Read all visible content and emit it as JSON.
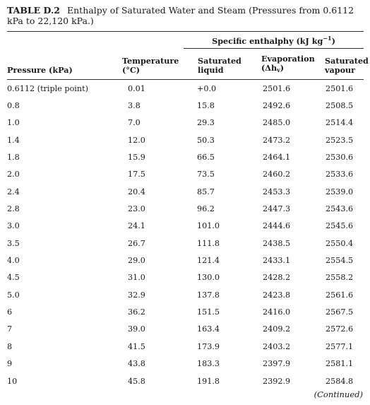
{
  "caption": {
    "label": "TABLE D.2",
    "text": "Enthalpy of Saturated Water and Steam (Pressures from 0.6112 kPa to 22,120 kPa.)"
  },
  "header": {
    "group": "Specific enthalphy (kJ kg",
    "group_sup": "−1",
    "group_end": ")",
    "pressure": "Pressure (kPa)",
    "temperature_1": "Temperature",
    "temperature_2": "(°C)",
    "liquid_1": "Saturated",
    "liquid_2": "liquid",
    "evaporation_1": "Evaporation",
    "evaporation_2a": "(Δh",
    "evaporation_2sub": "v",
    "evaporation_2b": ")",
    "vapour_1": "Saturated",
    "vapour_2": "vapour"
  },
  "rows": [
    [
      "0.6112 (triple point)",
      "0.01",
      "+0.0",
      "2501.6",
      "2501.6"
    ],
    [
      "0.8",
      "3.8",
      "15.8",
      "2492.6",
      "2508.5"
    ],
    [
      "1.0",
      "7.0",
      "29.3",
      "2485.0",
      "2514.4"
    ],
    [
      "1.4",
      "12.0",
      "50.3",
      "2473.2",
      "2523.5"
    ],
    [
      "1.8",
      "15.9",
      "66.5",
      "2464.1",
      "2530.6"
    ],
    [
      "2.0",
      "17.5",
      "73.5",
      "2460.2",
      "2533.6"
    ],
    [
      "2.4",
      "20.4",
      "85.7",
      "2453.3",
      "2539.0"
    ],
    [
      "2.8",
      "23.0",
      "96.2",
      "2447.3",
      "2543.6"
    ],
    [
      "3.0",
      "24.1",
      "101.0",
      "2444.6",
      "2545.6"
    ],
    [
      "3.5",
      "26.7",
      "111.8",
      "2438.5",
      "2550.4"
    ],
    [
      "4.0",
      "29.0",
      "121.4",
      "2433.1",
      "2554.5"
    ],
    [
      "4.5",
      "31.0",
      "130.0",
      "2428.2",
      "2558.2"
    ],
    [
      "5.0",
      "32.9",
      "137.8",
      "2423.8",
      "2561.6"
    ],
    [
      "6",
      "36.2",
      "151.5",
      "2416.0",
      "2567.5"
    ],
    [
      "7",
      "39.0",
      "163.4",
      "2409.2",
      "2572.6"
    ],
    [
      "8",
      "41.5",
      "173.9",
      "2403.2",
      "2577.1"
    ],
    [
      "9",
      "43.8",
      "183.3",
      "2397.9",
      "2581.1"
    ],
    [
      "10",
      "45.8",
      "191.8",
      "2392.9",
      "2584.8"
    ]
  ],
  "footer": {
    "continued": "(Continued)"
  }
}
